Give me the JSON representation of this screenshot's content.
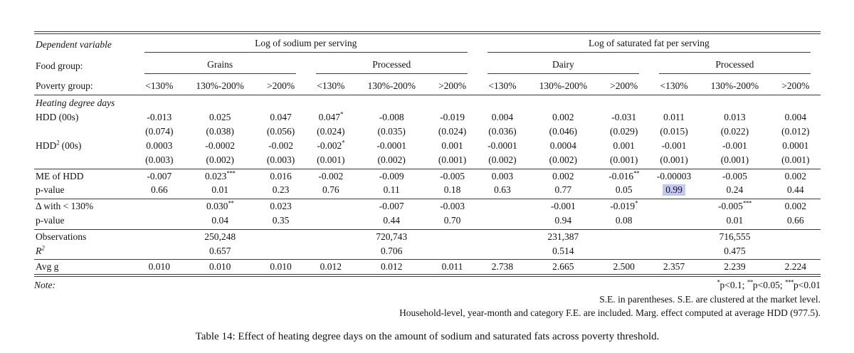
{
  "table": {
    "header": {
      "dependent_variable_label": "Dependent variable",
      "dv_groups": [
        "Log of sodium per serving",
        "Log of saturated fat per serving"
      ],
      "food_group_label": "Food group:",
      "food_groups": [
        "Grains",
        "Processed",
        "Dairy",
        "Processed"
      ],
      "poverty_group_label": "Poverty group:",
      "poverty_cols": [
        "<130%",
        "130%-200%",
        ">200%",
        "<130%",
        "130%-200%",
        ">200%",
        "<130%",
        "130%-200%",
        ">200%",
        "<130%",
        "130%-200%",
        ">200%"
      ]
    },
    "rows": [
      {
        "type": "section",
        "label": "Heating degree days"
      },
      {
        "type": "data",
        "label": "HDD (00s)",
        "cells": [
          "-0.013",
          "0.025",
          "0.047",
          "0.047*",
          "-0.008",
          "-0.019",
          "0.004",
          "0.002",
          "-0.031",
          "0.011",
          "0.013",
          "0.004"
        ]
      },
      {
        "type": "data",
        "label": "",
        "cells": [
          "(0.074)",
          "(0.038)",
          "(0.056)",
          "(0.024)",
          "(0.035)",
          "(0.024)",
          "(0.036)",
          "(0.046)",
          "(0.029)",
          "(0.015)",
          "(0.022)",
          "(0.012)"
        ]
      },
      {
        "type": "data",
        "label": "HDD",
        "label_sup": "2",
        "label_post": " (00s)",
        "cells": [
          "0.0003",
          "-0.0002",
          "-0.002",
          "-0.002*",
          "-0.0001",
          "0.001",
          "-0.0001",
          "0.0004",
          "0.001",
          "-0.001",
          "-0.001",
          "0.0001"
        ]
      },
      {
        "type": "data",
        "label": "",
        "cells": [
          "(0.003)",
          "(0.002)",
          "(0.003)",
          "(0.001)",
          "(0.002)",
          "(0.001)",
          "(0.002)",
          "(0.002)",
          "(0.001)",
          "(0.001)",
          "(0.001)",
          "(0.001)"
        ],
        "rule_below": true
      },
      {
        "type": "data",
        "label": "ME of HDD",
        "cells": [
          "-0.007",
          "0.023***",
          "0.016",
          "-0.002",
          "-0.009",
          "-0.005",
          "0.003",
          "0.002",
          "-0.016**",
          "-0.00003",
          "-0.005",
          "0.002"
        ]
      },
      {
        "type": "data",
        "label": "p-value",
        "cells": [
          "0.66",
          "0.01",
          "0.23",
          "0.76",
          "0.11",
          "0.18",
          "0.63",
          "0.77",
          "0.05",
          "0.99",
          "0.24",
          "0.44"
        ],
        "highlight_col": 9,
        "rule_below": true
      },
      {
        "type": "data",
        "label": "Δ with < 130%",
        "cells": [
          "",
          "0.030**",
          "0.023",
          "",
          "-0.007",
          "-0.003",
          "",
          "-0.001",
          "-0.019*",
          "",
          "-0.005***",
          "0.002"
        ]
      },
      {
        "type": "data",
        "label": "p-value",
        "cells": [
          "",
          "0.04",
          "0.35",
          "",
          "0.44",
          "0.70",
          "",
          "0.94",
          "0.08",
          "",
          "0.01",
          "0.66"
        ],
        "rule_below": true
      },
      {
        "type": "group",
        "label": "Observations",
        "cells": [
          "250,248",
          "720,743",
          "231,387",
          "716,555"
        ]
      },
      {
        "type": "group",
        "label": "R",
        "label_sup": "2",
        "label_italic": true,
        "cells": [
          "0.657",
          "0.706",
          "0.514",
          "0.475"
        ],
        "rule_below": true
      },
      {
        "type": "data",
        "label": "Avg g",
        "cells": [
          "0.010",
          "0.010",
          "0.010",
          "0.012",
          "0.012",
          "0.011",
          "2.738",
          "2.665",
          "2.500",
          "2.357",
          "2.239",
          "2.224"
        ],
        "double_below": true
      }
    ],
    "highlight_color": "#c3c7f2"
  },
  "notes": {
    "label": "Note:",
    "significance": "*p<0.1; **p<0.05; ***p<0.01",
    "line2": "S.E. in parentheses. S.E. are clustered at the market level.",
    "line3": "Household-level, year-month and category F.E. are included. Marg. effect computed at average HDD (977.5)."
  },
  "caption": "Table 14: Effect of heating degree days on the amount of sodium and saturated fats across poverty threshold."
}
